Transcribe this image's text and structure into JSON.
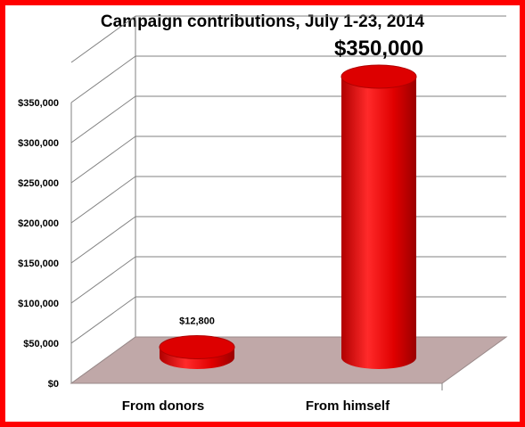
{
  "chart_data": {
    "type": "bar",
    "title": "Campaign contributions, July 1-23, 2014",
    "categories": [
      "From donors",
      "From himself"
    ],
    "values": [
      12800,
      350000
    ],
    "data_labels": [
      "$12,800",
      "$350,000"
    ],
    "y_ticks": [
      "$0",
      "$50,000",
      "$100,000",
      "$150,000",
      "$200,000",
      "$250,000",
      "$300,000",
      "$350,000"
    ],
    "ylim": [
      0,
      350000
    ],
    "grid": true,
    "style": "3d-cylinder",
    "colors": {
      "bar": "#ff0000",
      "floor": "#c0a8a8",
      "frame": "#ff0000",
      "grid": "#808080"
    }
  }
}
